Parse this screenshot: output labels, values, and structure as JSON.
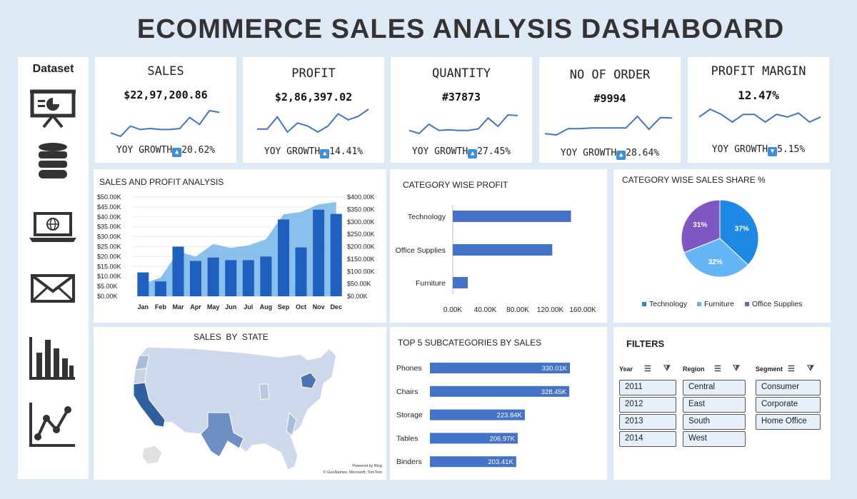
{
  "title": "ECOMMERCE SALES ANALYSIS DASHABOARD",
  "sidebar": {
    "label": "Dataset",
    "icons": [
      "presentation-icon",
      "database-icon",
      "laptop-globe-icon",
      "mail-icon",
      "bar-chart-icon",
      "line-chart-icon"
    ]
  },
  "kpis": [
    {
      "title": "SALES",
      "value": "$22,97,200.86",
      "growth_label": "YOY GROWTH",
      "growth": "20.62%",
      "direction": "up"
    },
    {
      "title": "PROFIT",
      "value": "$2,86,397.02",
      "growth_label": "YOY GROWTH",
      "growth": "14.41%",
      "direction": "up"
    },
    {
      "title": "QUANTITY",
      "value": "#37873",
      "growth_label": "YOY GROWTH",
      "growth": "27.45%",
      "direction": "up"
    },
    {
      "title": "NO OF ORDER",
      "value": "#9994",
      "growth_label": "YOY GROWTH",
      "growth": "28.64%",
      "direction": "up"
    },
    {
      "title": "PROFIT MARGIN",
      "value": "12.47%",
      "growth_label": "YOY GROWTH",
      "growth": "5.15%",
      "direction": "down"
    }
  ],
  "sales_profit": {
    "title": "SALES AND PROFIT ANALYSIS",
    "left_ticks": [
      "$50.00K",
      "$45.00K",
      "$40.00K",
      "$35.00K",
      "$30.00K",
      "$25.00K",
      "$20.00K",
      "$15.00K",
      "$10.00K",
      "$5.00K",
      "$0.00K"
    ],
    "right_ticks": [
      "$400.00K",
      "$350.00K",
      "$300.00K",
      "$250.00K",
      "$200.00K",
      "$150.00K",
      "$100.00K",
      "$50.00K",
      "$0.00K"
    ]
  },
  "category_profit": {
    "title": "CATEGORY WISE PROFIT"
  },
  "category_share": {
    "title": "CATEGORY WISE SALES SHARE %"
  },
  "state": {
    "title": "SALES  BY  STATE",
    "credit1": "Powered by Bing",
    "credit2": "© GeoNames, Microsoft, TomTom"
  },
  "subcategories": {
    "title": "TOP 5 SUBCATEGORIES BY SALES"
  },
  "filters": {
    "title": "FILTERS",
    "year": {
      "label": "Year",
      "options": [
        "2011",
        "2012",
        "2013",
        "2014"
      ]
    },
    "region": {
      "label": "Region",
      "options": [
        "Central",
        "East",
        "South",
        "West"
      ]
    },
    "segment": {
      "label": "Segment",
      "options": [
        "Consumer",
        "Corporate",
        "Home Office"
      ]
    }
  },
  "colors": {
    "bar": "#1f5fbf",
    "area": "#7db9ea",
    "hbar": "#4472c4",
    "technology": "#1e88e5",
    "furniture": "#64b5f6",
    "office": "#7e57c2",
    "spark": "#4472c4"
  },
  "chart_data": [
    {
      "type": "bar",
      "id": "sales-and-profit",
      "categories": [
        "Jan",
        "Feb",
        "Mar",
        "Apr",
        "May",
        "Jun",
        "Jul",
        "Aug",
        "Sep",
        "Oct",
        "Nov",
        "Dec"
      ],
      "series": [
        {
          "values": [
            12000,
            7500,
            25000,
            17800,
            19500,
            18200,
            18200,
            20000,
            38700,
            24600,
            43600,
            41500
          ],
          "axis": "left",
          "style": "bar"
        },
        {
          "values": [
            50000,
            75000,
            180000,
            160000,
            210000,
            195000,
            205000,
            230000,
            330000,
            340000,
            370000,
            380000
          ],
          "axis": "right",
          "style": "area"
        }
      ],
      "ylim_left": [
        0,
        50000
      ],
      "ylim_right": [
        0,
        400000
      ]
    },
    {
      "type": "bar",
      "id": "category-wise-profit",
      "orientation": "horizontal",
      "categories": [
        "Technology",
        "Office Supplies",
        "Furniture"
      ],
      "values": [
        145455,
        122491,
        18451
      ],
      "xticks": [
        "0.00K",
        "40.00K",
        "80.00K",
        "120.00K",
        "160.00K"
      ],
      "xlim": [
        0,
        160000
      ]
    },
    {
      "type": "pie",
      "id": "category-sales-share",
      "labels": [
        "Technology",
        "Furniture",
        "Office Supplies"
      ],
      "values": [
        37,
        32,
        31
      ],
      "value_labels": [
        "37%",
        "32%",
        "31%"
      ]
    },
    {
      "type": "bar",
      "id": "top-5-subcategories",
      "orientation": "horizontal",
      "categories": [
        "Phones",
        "Chairs",
        "Storage",
        "Tables",
        "Binders"
      ],
      "values": [
        330.01,
        328.45,
        223.84,
        206.97,
        203.41
      ],
      "value_labels": [
        "330.01K",
        "328.45K",
        "223.84K",
        "206.97K",
        "203.41K"
      ]
    },
    {
      "type": "line",
      "id": "kpi-sparklines",
      "series": [
        {
          "values": [
            3,
            2,
            5,
            4,
            4.3,
            4,
            4,
            4.3,
            7.5,
            5.5,
            9.5,
            9
          ]
        },
        {
          "values": [
            4,
            4,
            8,
            3,
            6,
            5,
            3,
            5,
            9,
            7,
            8.2,
            10.5
          ]
        },
        {
          "values": [
            4,
            3,
            6,
            4,
            4.2,
            4,
            4,
            4.5,
            8,
            5.3,
            9,
            8.8
          ]
        },
        {
          "values": [
            2,
            1.5,
            4,
            4,
            4.3,
            4.3,
            4.3,
            4.3,
            9,
            3.8,
            8.5,
            8.3
          ]
        },
        {
          "values": [
            6,
            9,
            7,
            4,
            7,
            7,
            4,
            7,
            6,
            7.5,
            4,
            6
          ]
        }
      ]
    }
  ]
}
